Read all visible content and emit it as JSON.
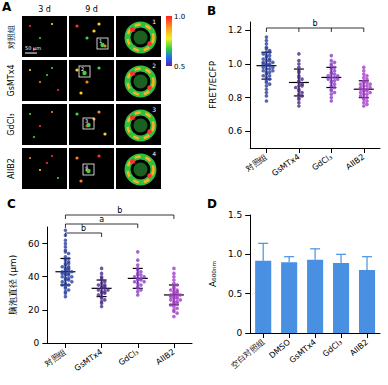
{
  "panel_a": {
    "title": "A",
    "columns": [
      "3 d",
      "9 d"
    ],
    "rows": [
      "对照组",
      "GsMTx4",
      "GdCl₃",
      "AIIB2"
    ],
    "insets": [
      "1",
      "2",
      "3",
      "4"
    ],
    "scale_bar": "50 μm",
    "color_bar": {
      "range": [
        0.5,
        1.0
      ],
      "ticks": [
        {
          "value": 1,
          "label": "1.0"
        },
        0.5
      ]
    }
  },
  "chart_data": [
    {
      "type": "scatter",
      "title": "B",
      "y_label": "FRET/ECFP",
      "categories": [
        "对照组",
        "GsMTx4",
        "GdCl₃",
        "AIIB2"
      ],
      "colors": [
        "#2c3e9e",
        "#4b2a86",
        "#8a3fc4",
        "#a43cc8"
      ],
      "values": [
        [
          1.16,
          1.14,
          1.12,
          1.1,
          1.09,
          1.08,
          1.07,
          1.07,
          1.06,
          1.05,
          1.05,
          1.04,
          1.03,
          1.03,
          1.02,
          1.02,
          1.01,
          1.01,
          1.0,
          1.0,
          1.0,
          0.99,
          0.99,
          0.98,
          0.98,
          0.97,
          0.97,
          0.96,
          0.96,
          0.95,
          0.95,
          0.94,
          0.93,
          0.93,
          0.92,
          0.91,
          0.9,
          0.89,
          0.88,
          0.87,
          0.85,
          0.83,
          0.81,
          0.78
        ],
        [
          1.06,
          1.02,
          1.0,
          0.98,
          0.96,
          0.95,
          0.93,
          0.92,
          0.91,
          0.9,
          0.89,
          0.88,
          0.87,
          0.87,
          0.86,
          0.85,
          0.84,
          0.83,
          0.82,
          0.81,
          0.8,
          0.79,
          0.77,
          0.75
        ],
        [
          1.05,
          1.02,
          1.01,
          1.0,
          0.99,
          0.98,
          0.97,
          0.96,
          0.95,
          0.94,
          0.94,
          0.93,
          0.93,
          0.92,
          0.92,
          0.91,
          0.91,
          0.9,
          0.9,
          0.89,
          0.88,
          0.87,
          0.86,
          0.85,
          0.84,
          0.83,
          0.82,
          0.8,
          0.78
        ],
        [
          0.98,
          0.96,
          0.94,
          0.93,
          0.92,
          0.91,
          0.9,
          0.89,
          0.89,
          0.88,
          0.88,
          0.87,
          0.87,
          0.86,
          0.86,
          0.85,
          0.85,
          0.85,
          0.84,
          0.84,
          0.83,
          0.83,
          0.82,
          0.82,
          0.81,
          0.8,
          0.8,
          0.79,
          0.78,
          0.77,
          0.76,
          0.75
        ]
      ],
      "means": [
        0.99,
        0.89,
        0.92,
        0.85
      ],
      "sd": [
        0.08,
        0.08,
        0.06,
        0.05
      ],
      "ylim": [
        0.5,
        1.25
      ],
      "yticks": [
        0.6,
        0.8,
        {
          "value": 1,
          "label": "1.0"
        },
        1.2
      ],
      "grid": false,
      "annotations": [
        {
          "text": "b",
          "from": "对照组",
          "to": [
            "GsMTx4",
            "GdCl₃",
            "AIIB2"
          ]
        }
      ]
    },
    {
      "type": "scatter",
      "title": "C",
      "y_label": "脑泡直径 (μm)",
      "categories": [
        "对照组",
        "GsMTx4",
        "GdCl₃",
        "AIIB2"
      ],
      "colors": [
        "#2c3e9e",
        "#4b2a86",
        "#8a3fc4",
        "#a43cc8"
      ],
      "values": [
        [
          68,
          65,
          62,
          60,
          58,
          56,
          55,
          54,
          52,
          51,
          50,
          49,
          48,
          48,
          47,
          46,
          46,
          45,
          45,
          44,
          44,
          43,
          43,
          42,
          42,
          42,
          41,
          41,
          40,
          40,
          39,
          39,
          38,
          38,
          37,
          37,
          36,
          35,
          35,
          34,
          33,
          32,
          31,
          30,
          28
        ],
        [
          45,
          42,
          40,
          39,
          38,
          37,
          36,
          35,
          35,
          34,
          34,
          33,
          33,
          32,
          32,
          31,
          31,
          30,
          30,
          29,
          28,
          27,
          26,
          25,
          24,
          22
        ],
        [
          55,
          50,
          47,
          45,
          44,
          43,
          42,
          41,
          41,
          40,
          40,
          39,
          39,
          38,
          38,
          37,
          37,
          36,
          35,
          34,
          33,
          32,
          31,
          29
        ],
        [
          45,
          42,
          40,
          38,
          36,
          35,
          34,
          33,
          32,
          32,
          31,
          31,
          30,
          30,
          29,
          29,
          28,
          28,
          28,
          27,
          27,
          26,
          26,
          25,
          25,
          24,
          24,
          23,
          22,
          21,
          20,
          19,
          18,
          16
        ]
      ],
      "means": [
        43,
        33,
        39,
        29
      ],
      "sd": [
        8,
        5,
        6,
        6
      ],
      "ylim": [
        0,
        70
      ],
      "yticks": [
        0,
        20,
        40,
        60
      ],
      "grid": false,
      "annotations": [
        {
          "text": "b",
          "from": "对照组",
          "to": "GsMTx4"
        },
        {
          "text": "a",
          "from": "对照组",
          "to": "GdCl₃"
        },
        {
          "text": "b",
          "from": "对照组",
          "to": "AIIB2"
        }
      ]
    },
    {
      "type": "bar",
      "title": "D",
      "y_label": "A₆₀₀ₙₘ",
      "categories": [
        "空白对照组",
        "DMSO",
        "GsMTx4",
        "GdCl₃",
        "AIIB2"
      ],
      "values": [
        0.92,
        0.9,
        0.93,
        0.89,
        0.8
      ],
      "errors": [
        0.22,
        0.07,
        0.14,
        0.11,
        0.17
      ],
      "color": "#4a90e2",
      "ylim": [
        0,
        1.5
      ],
      "yticks": [
        0,
        0.5,
        {
          "value": 1,
          "label": "1.0"
        },
        1.5
      ],
      "grid": false
    }
  ]
}
